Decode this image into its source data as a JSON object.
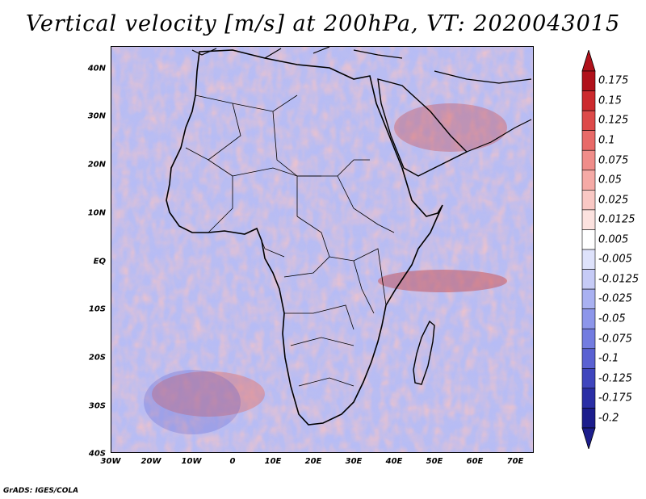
{
  "title": "Vertical velocity [m/s] at 200hPa, VT: 2020043015",
  "credit": "GrADS: IGES/COLA",
  "map": {
    "region": "Africa",
    "lat_labels": [
      "40N",
      "30N",
      "20N",
      "10N",
      "EQ",
      "10S",
      "20S",
      "30S",
      "40S"
    ],
    "lon_labels": [
      "30W",
      "20W",
      "10W",
      "0",
      "10E",
      "20E",
      "30E",
      "40E",
      "50E",
      "60E",
      "70E"
    ]
  },
  "colorbar": {
    "labels": [
      "0.175",
      "0.15",
      "0.125",
      "0.1",
      "0.075",
      "0.05",
      "0.025",
      "0.0125",
      "0.005",
      "-0.005",
      "-0.0125",
      "-0.025",
      "-0.05",
      "-0.075",
      "-0.1",
      "-0.125",
      "-0.175",
      "-0.2"
    ],
    "colors": [
      "#b0111b",
      "#cc2a2e",
      "#dd4a4a",
      "#e86a68",
      "#f08d8a",
      "#f5aaa6",
      "#f9c8c4",
      "#fce2df",
      "#ffffff",
      "#dee2fb",
      "#c6cbf6",
      "#a9b1f1",
      "#8d96ea",
      "#737ce0",
      "#5a61d2",
      "#3f45bd",
      "#2a2ea5",
      "#1c1d8c"
    ]
  }
}
